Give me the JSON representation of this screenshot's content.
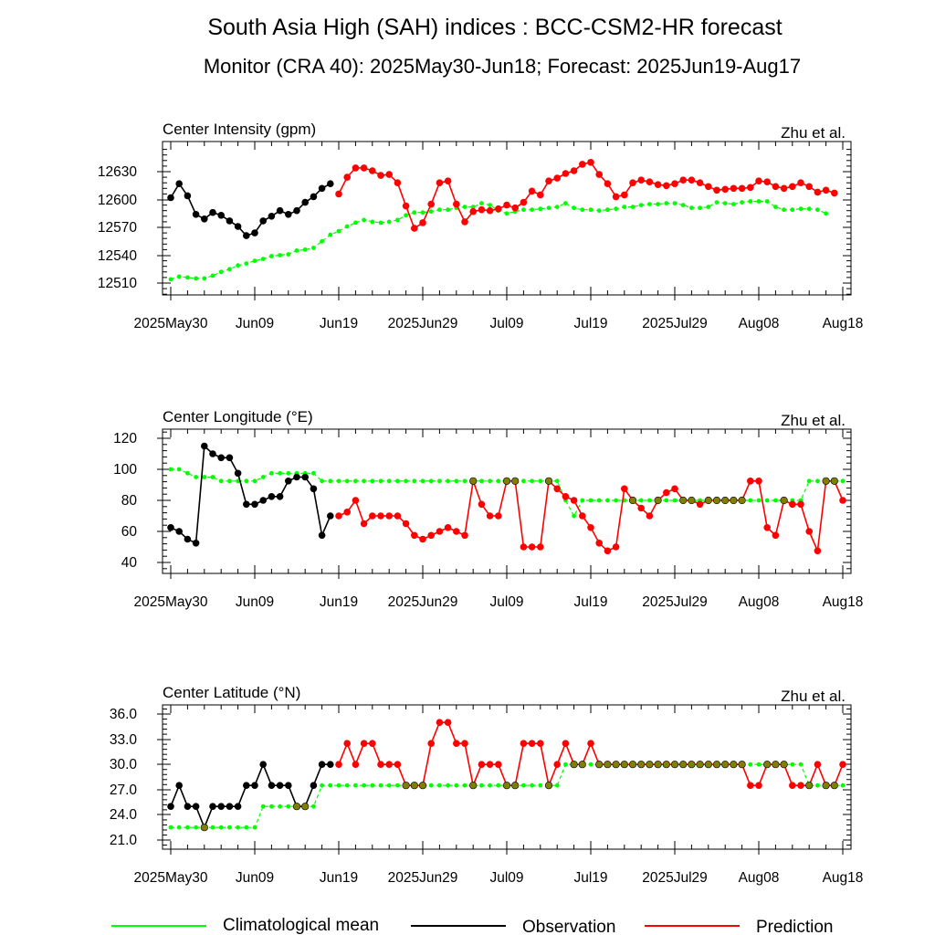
{
  "title": "South Asia High (SAH) indices : BCC-CSM2-HR forecast",
  "subtitle": "Monitor (CRA 40): 2025May30-Jun18; Forecast: 2025Jun19-Aug17",
  "legend": {
    "climatology": "Climatological mean",
    "observation": "Observation",
    "prediction": "Prediction"
  },
  "colors": {
    "climatology": "#00ff00",
    "observation": "#000000",
    "prediction": "#ff0000",
    "overlap_fill": "#808000"
  },
  "chart_data": [
    {
      "type": "line",
      "title": "Center Intensity (gpm)",
      "credit": "Zhu et al.",
      "x_ticks": [
        "2025May30",
        "Jun09",
        "Jun19",
        "2025Jun29",
        "Jul09",
        "Jul19",
        "2025Jul29",
        "Aug08",
        "Aug18"
      ],
      "y_ticks": [
        "12510",
        "12540",
        "12570",
        "12600",
        "12630"
      ],
      "ylim": [
        12500,
        12660
      ],
      "xlim": [
        0,
        80
      ],
      "series": [
        {
          "name": "Climatological mean",
          "x0": 0,
          "values": [
            12514,
            12517,
            12516,
            12515,
            12515,
            12518,
            12522,
            12525,
            12529,
            12531,
            12534,
            12536,
            12539,
            12540,
            12541,
            12545,
            12546,
            12548,
            12555,
            12562,
            12566,
            12571,
            12575,
            12578,
            12576,
            12575,
            12576,
            12578,
            12583,
            12586,
            12586,
            12587,
            12589,
            12589,
            12591,
            12592,
            12592,
            12596,
            12594,
            12588,
            12585,
            12587,
            12589,
            12589,
            12590,
            12591,
            12592,
            12596,
            12591,
            12589,
            12589,
            12588,
            12589,
            12590,
            12592,
            12592,
            12594,
            12595,
            12595,
            12596,
            12596,
            12594,
            12591,
            12591,
            12592,
            12597,
            12596,
            12595,
            12597,
            12598,
            12598,
            12598,
            12592,
            12589,
            12589,
            12590,
            12590,
            12589,
            12585
          ]
        },
        {
          "name": "Observation",
          "x0": 0,
          "values": [
            12602,
            12617,
            12604,
            12584,
            12579,
            12586,
            12583,
            12577,
            12571,
            12561,
            12564,
            12577,
            12582,
            12588,
            12584,
            12588,
            12597,
            12603,
            12612,
            12617
          ]
        },
        {
          "name": "Prediction",
          "x0": 20,
          "values": [
            12606,
            12624,
            12634,
            12634,
            12631,
            12626,
            12627,
            12618,
            12593,
            12569,
            12575,
            12595,
            12618,
            12620,
            12595,
            12576,
            12587,
            12589,
            12588,
            12590,
            12594,
            12591,
            12597,
            12609,
            12605,
            12620,
            12623,
            12628,
            12631,
            12638,
            12640,
            12627,
            12617,
            12603,
            12605,
            12618,
            12621,
            12619,
            12616,
            12615,
            12617,
            12621,
            12621,
            12618,
            12614,
            12610,
            12611,
            12612,
            12612,
            12613,
            12620,
            12619,
            12614,
            12612,
            12614,
            12618,
            12614,
            12608,
            12610,
            12607
          ]
        }
      ]
    },
    {
      "type": "line",
      "title": "Center Longitude (°E)",
      "credit": "Zhu et al.",
      "x_ticks": [
        "2025May30",
        "Jun09",
        "Jun19",
        "2025Jun29",
        "Jul09",
        "Jul19",
        "2025Jul29",
        "Aug08",
        "Aug18"
      ],
      "y_ticks": [
        "40",
        "60",
        "80",
        "100",
        "120"
      ],
      "ylim": [
        35,
        125
      ],
      "xlim": [
        0,
        80
      ],
      "series": [
        {
          "name": "Climatological mean",
          "x0": 0,
          "values": [
            100,
            100,
            97.5,
            95,
            95,
            95,
            92.5,
            92.5,
            92.5,
            92.5,
            92.5,
            95,
            97.5,
            97.5,
            97.5,
            97.5,
            97.5,
            97.5,
            92.5,
            92.5,
            92.5,
            92.5,
            92.5,
            92.5,
            92.5,
            92.5,
            92.5,
            92.5,
            92.5,
            92.5,
            92.5,
            92.5,
            92.5,
            92.5,
            92.5,
            92.5,
            92.5,
            92.5,
            92.5,
            92.5,
            92.5,
            92.5,
            92.5,
            92.5,
            92.5,
            92.5,
            92.5,
            80,
            70,
            80,
            80,
            80,
            80,
            80,
            80,
            80,
            80,
            80,
            80,
            80,
            80,
            80,
            80,
            80,
            80,
            80,
            80,
            80,
            80,
            80,
            80,
            80,
            80,
            80,
            80,
            80,
            92.5,
            92.5,
            92.5,
            92.5,
            92.5
          ]
        },
        {
          "name": "Observation",
          "x0": 0,
          "values": [
            62.5,
            60,
            55,
            52.5,
            115,
            110,
            107.5,
            107.5,
            97.5,
            77.5,
            77.5,
            80,
            82.5,
            82.5,
            92.5,
            95,
            95,
            87.5,
            57.5,
            70
          ]
        },
        {
          "name": "Prediction",
          "x0": 20,
          "values": [
            70,
            72.5,
            80,
            65,
            70,
            70,
            70,
            70,
            65,
            57.5,
            55,
            57.5,
            60,
            62.5,
            60,
            57.5,
            92.5,
            77.5,
            70,
            70,
            92.5,
            92.5,
            50,
            50,
            50,
            92.5,
            87.5,
            82.5,
            80,
            70,
            62.5,
            52.5,
            47.5,
            50,
            87.5,
            80,
            75,
            70,
            80,
            85,
            87.5,
            80,
            80,
            77.5,
            80,
            80,
            80,
            80,
            80,
            92.5,
            92.5,
            62.5,
            57.5,
            80,
            77.5,
            77.5,
            60,
            47.5,
            92.5,
            92.5,
            80
          ]
        }
      ]
    },
    {
      "type": "line",
      "title": "Center Latitude (°N)",
      "credit": "Zhu et al.",
      "x_ticks": [
        "2025May30",
        "Jun09",
        "Jun19",
        "2025Jun29",
        "Jul09",
        "Jul19",
        "2025Jul29",
        "Aug08",
        "Aug18"
      ],
      "y_ticks": [
        "21.0",
        "24.0",
        "27.0",
        "30.0",
        "33.0",
        "36.0"
      ],
      "ylim": [
        20,
        37
      ],
      "xlim": [
        0,
        80
      ],
      "series": [
        {
          "name": "Climatological mean",
          "x0": 0,
          "values": [
            22.5,
            22.5,
            22.5,
            22.5,
            22.5,
            22.5,
            22.5,
            22.5,
            22.5,
            22.5,
            22.5,
            25,
            25,
            25,
            25,
            25,
            25,
            25,
            27.5,
            27.5,
            27.5,
            27.5,
            27.5,
            27.5,
            27.5,
            27.5,
            27.5,
            27.5,
            27.5,
            27.5,
            27.5,
            27.5,
            27.5,
            27.5,
            27.5,
            27.5,
            27.5,
            27.5,
            27.5,
            27.5,
            27.5,
            27.5,
            27.5,
            27.5,
            27.5,
            27.5,
            27.5,
            30,
            30,
            30,
            30,
            30,
            30,
            30,
            30,
            30,
            30,
            30,
            30,
            30,
            30,
            30,
            30,
            30,
            30,
            30,
            30,
            30,
            30,
            30,
            30,
            30,
            30,
            30,
            30,
            30,
            27.5,
            27.5,
            27.5,
            27.5,
            27.5
          ]
        },
        {
          "name": "Observation",
          "x0": 0,
          "values": [
            25,
            27.5,
            25,
            25,
            22.5,
            25,
            25,
            25,
            25,
            27.5,
            27.5,
            30,
            27.5,
            27.5,
            27.5,
            25,
            25,
            27.5,
            30,
            30
          ]
        },
        {
          "name": "Prediction",
          "x0": 20,
          "values": [
            30,
            32.5,
            30,
            32.5,
            32.5,
            30,
            30,
            30,
            27.5,
            27.5,
            27.5,
            32.5,
            35,
            35,
            32.5,
            32.5,
            27.5,
            30,
            30,
            30,
            27.5,
            27.5,
            32.5,
            32.5,
            32.5,
            27.5,
            30,
            32.5,
            30,
            30,
            32.5,
            30,
            30,
            30,
            30,
            30,
            30,
            30,
            30,
            30,
            30,
            30,
            30,
            30,
            30,
            30,
            30,
            30,
            30,
            27.5,
            27.5,
            30,
            30,
            30,
            27.5,
            27.5,
            27.5,
            30,
            27.5,
            27.5,
            30
          ]
        }
      ]
    }
  ]
}
